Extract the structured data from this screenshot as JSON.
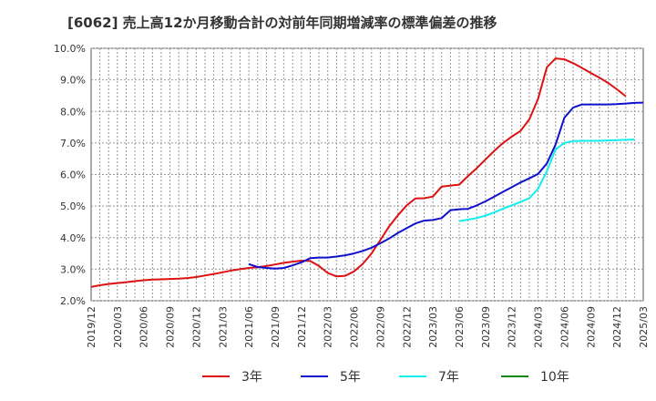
{
  "chart_data": {
    "type": "line",
    "title": "[6062]  売上高12か月移動合計の対前年同期増減率の標準偏差の推移",
    "ylim": [
      2.0,
      10.0
    ],
    "y_ticks": [
      "2.0%",
      "3.0%",
      "4.0%",
      "5.0%",
      "6.0%",
      "7.0%",
      "8.0%",
      "9.0%",
      "10.0%"
    ],
    "y_tick_values": [
      2,
      3,
      4,
      5,
      6,
      7,
      8,
      9,
      10
    ],
    "x_ticks": [
      "2019/12",
      "2020/03",
      "2020/06",
      "2020/09",
      "2020/12",
      "2021/03",
      "2021/06",
      "2021/09",
      "2021/12",
      "2022/03",
      "2022/06",
      "2022/09",
      "2022/12",
      "2023/03",
      "2023/06",
      "2023/09",
      "2023/12",
      "2024/03",
      "2024/06",
      "2024/09",
      "2024/12",
      "2025/03"
    ],
    "grid": true,
    "legend_position": "bottom",
    "series": [
      {
        "name": "3年",
        "color": "#dd1111",
        "start_index": 0,
        "values": [
          2.44,
          2.49,
          2.53,
          2.56,
          2.59,
          2.62,
          2.65,
          2.67,
          2.68,
          2.69,
          2.7,
          2.72,
          2.75,
          2.8,
          2.85,
          2.9,
          2.96,
          3.0,
          3.04,
          3.06,
          3.1,
          3.15,
          3.2,
          3.24,
          3.27,
          3.26,
          3.1,
          2.88,
          2.77,
          2.79,
          2.93,
          3.17,
          3.5,
          3.92,
          4.35,
          4.71,
          5.02,
          5.24,
          5.25,
          5.3,
          5.62,
          5.65,
          5.68,
          5.95,
          6.2,
          6.48,
          6.75,
          7.0,
          7.2,
          7.38,
          7.75,
          8.4,
          9.4,
          9.68,
          9.65,
          9.53,
          9.38,
          9.22,
          9.07,
          8.9,
          8.7,
          8.48
        ]
      },
      {
        "name": "5年",
        "color": "#1111cc",
        "start_index": 18,
        "values": [
          3.16,
          3.07,
          3.04,
          3.02,
          3.04,
          3.12,
          3.22,
          3.35,
          3.37,
          3.37,
          3.4,
          3.44,
          3.5,
          3.58,
          3.68,
          3.82,
          3.97,
          4.15,
          4.3,
          4.45,
          4.54,
          4.56,
          4.62,
          4.87,
          4.9,
          4.91,
          5.02,
          5.15,
          5.3,
          5.45,
          5.6,
          5.75,
          5.88,
          6.02,
          6.35,
          6.95,
          7.8,
          8.12,
          8.22,
          8.22,
          8.22,
          8.22,
          8.23,
          8.25,
          8.27,
          8.28
        ]
      },
      {
        "name": "7年",
        "color": "#11eeee",
        "start_index": 42,
        "values": [
          4.52,
          4.57,
          4.62,
          4.7,
          4.8,
          4.92,
          5.02,
          5.13,
          5.25,
          5.55,
          6.1,
          6.8,
          7.0,
          7.06,
          7.07,
          7.07,
          7.07,
          7.08,
          7.09,
          7.1,
          7.11
        ]
      },
      {
        "name": "10年",
        "color": "#118811",
        "start_index": 0,
        "values": []
      }
    ]
  }
}
